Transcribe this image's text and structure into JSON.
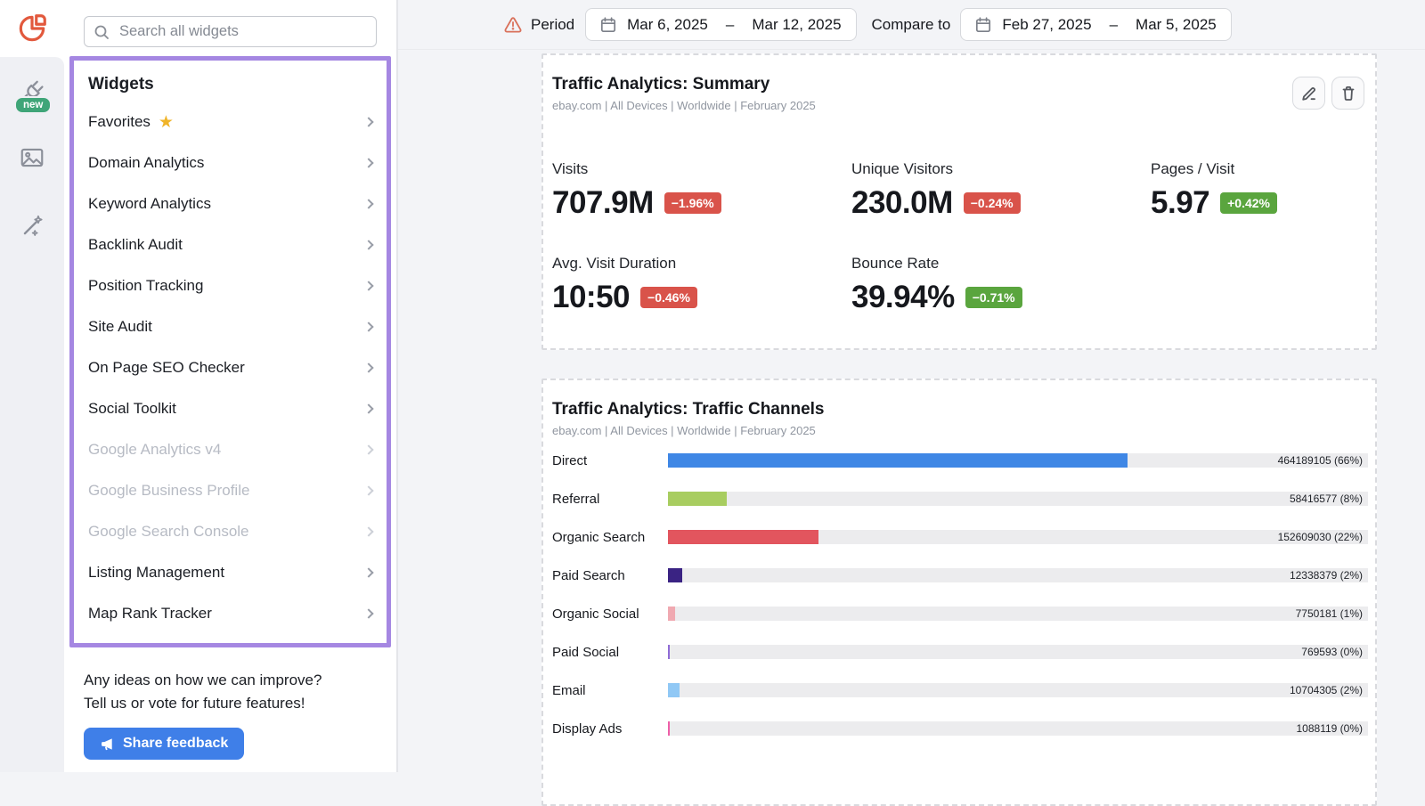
{
  "colors": {
    "accent_purple": "#a587e2",
    "badge_red": "#d9534a",
    "badge_green": "#5aa53e",
    "button_blue": "#3f7fe8",
    "logo_orange": "#e2593d",
    "new_badge_green": "#3fa578",
    "star_gold": "#f0b429"
  },
  "rail": {
    "new_badge": "new"
  },
  "sidebar": {
    "search_placeholder": "Search all widgets",
    "title": "Widgets",
    "items": [
      {
        "label": "Favorites",
        "starred": true,
        "disabled": false
      },
      {
        "label": "Domain Analytics",
        "disabled": false
      },
      {
        "label": "Keyword Analytics",
        "disabled": false
      },
      {
        "label": "Backlink Audit",
        "disabled": false
      },
      {
        "label": "Position Tracking",
        "disabled": false
      },
      {
        "label": "Site Audit",
        "disabled": false
      },
      {
        "label": "On Page SEO Checker",
        "disabled": false
      },
      {
        "label": "Social Toolkit",
        "disabled": false
      },
      {
        "label": "Google Analytics v4",
        "disabled": true
      },
      {
        "label": "Google Business Profile",
        "disabled": true
      },
      {
        "label": "Google Search Console",
        "disabled": true
      },
      {
        "label": "Listing Management",
        "disabled": false
      },
      {
        "label": "Map Rank Tracker",
        "disabled": false
      }
    ],
    "feedback": {
      "line1": "Any ideas on how we can improve?",
      "line2": "Tell us or vote for future features!",
      "button": "Share feedback"
    }
  },
  "header": {
    "period": {
      "label": "Period",
      "start": "Mar 6, 2025",
      "dash": "–",
      "end": "Mar 12, 2025"
    },
    "compare": {
      "label": "Compare to",
      "start": "Feb 27, 2025",
      "dash": "–",
      "end": "Mar 5, 2025"
    }
  },
  "summary_widget": {
    "title": "Traffic Analytics: Summary",
    "subtitle": "ebay.com | All Devices | Worldwide | February 2025",
    "metrics": [
      {
        "label": "Visits",
        "value": "707.9M",
        "delta": "−1.96%",
        "tone": "negative"
      },
      {
        "label": "Unique Visitors",
        "value": "230.0M",
        "delta": "−0.24%",
        "tone": "negative"
      },
      {
        "label": "Pages / Visit",
        "value": "5.97",
        "delta": "+0.42%",
        "tone": "positive"
      },
      {
        "label": "Avg. Visit Duration",
        "value": "10:50",
        "delta": "−0.46%",
        "tone": "negative"
      },
      {
        "label": "Bounce Rate",
        "value": "39.94%",
        "delta": "−0.71%",
        "tone": "positive"
      }
    ]
  },
  "channels_widget": {
    "title": "Traffic Analytics: Traffic Channels",
    "subtitle": "ebay.com | All Devices | Worldwide | February 2025"
  },
  "chart_data": {
    "type": "bar",
    "orientation": "horizontal",
    "title": "Traffic Analytics: Traffic Channels",
    "categories": [
      "Direct",
      "Referral",
      "Organic Search",
      "Paid Search",
      "Organic Social",
      "Paid Social",
      "Email",
      "Display Ads"
    ],
    "values": [
      464189105,
      58416577,
      152609030,
      12338379,
      7750181,
      769593,
      10704305,
      1088119
    ],
    "value_labels": [
      "464189105 (66%)",
      "58416577 (8%)",
      "152609030 (22%)",
      "12338379 (2%)",
      "7750181 (1%)",
      "769593 (0%)",
      "10704305 (2%)",
      "1088119 (0%)"
    ],
    "percents": [
      66,
      8,
      22,
      2,
      1,
      0,
      2,
      0
    ],
    "bar_width_pct": [
      65.6,
      8.4,
      21.5,
      2.0,
      1.0,
      0.3,
      1.6,
      0.3
    ],
    "colors": [
      "#3f87e5",
      "#a8cd60",
      "#e2555e",
      "#3a2383",
      "#f0a9b1",
      "#8f6bd6",
      "#90c8f5",
      "#ee5fa8"
    ],
    "track_color": "#ececee",
    "axis": "bar length = share of total traffic (0–100%)",
    "grid": false,
    "legend": false
  }
}
